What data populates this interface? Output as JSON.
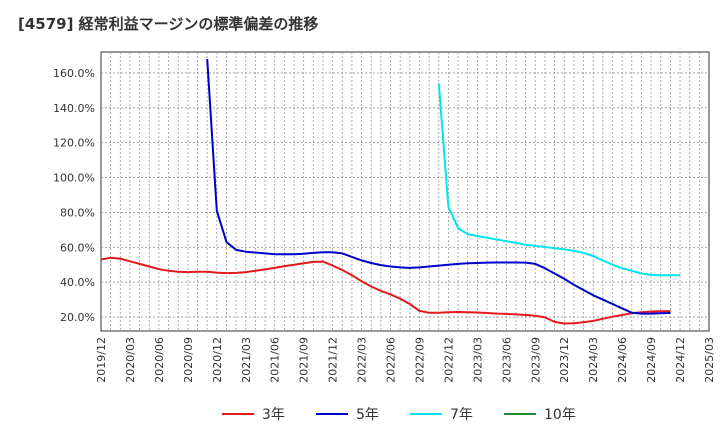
{
  "chart_data": {
    "type": "line",
    "title": "[4579]  経常利益マージンの標準偏差の推移",
    "xlabel": "",
    "ylabel": "",
    "ylim": [
      12,
      172
    ],
    "y_ticks": [
      20,
      40,
      60,
      80,
      100,
      120,
      140,
      160
    ],
    "y_tick_labels": [
      "20.0%",
      "40.0%",
      "60.0%",
      "80.0%",
      "100.0%",
      "120.0%",
      "140.0%",
      "160.0%"
    ],
    "x_range": [
      "2019-12",
      "2025-03"
    ],
    "x_tick_labels": [
      "2019/12",
      "2020/03",
      "2020/06",
      "2020/09",
      "2020/12",
      "2021/03",
      "2021/06",
      "2021/09",
      "2021/12",
      "2022/03",
      "2022/06",
      "2022/09",
      "2022/12",
      "2023/03",
      "2023/06",
      "2023/09",
      "2023/12",
      "2024/03",
      "2024/06",
      "2024/09",
      "2024/12",
      "2025/03"
    ],
    "grid": true,
    "legend_position": "bottom",
    "series": [
      {
        "name": "3年",
        "color": "#e31a1c",
        "points": [
          [
            "2019-12",
            53
          ],
          [
            "2020-01",
            54
          ],
          [
            "2020-02",
            53.5
          ],
          [
            "2020-03",
            52
          ],
          [
            "2020-04",
            50.5
          ],
          [
            "2020-05",
            49
          ],
          [
            "2020-06",
            47.5
          ],
          [
            "2020-07",
            46.5
          ],
          [
            "2020-08",
            46
          ],
          [
            "2020-09",
            45.8
          ],
          [
            "2020-10",
            46
          ],
          [
            "2020-11",
            46
          ],
          [
            "2020-12",
            45.5
          ],
          [
            "2021-01",
            45.2
          ],
          [
            "2021-02",
            45.3
          ],
          [
            "2021-03",
            45.8
          ],
          [
            "2021-04",
            46.5
          ],
          [
            "2021-05",
            47.3
          ],
          [
            "2021-06",
            48.2
          ],
          [
            "2021-07",
            49.2
          ],
          [
            "2021-08",
            50
          ],
          [
            "2021-09",
            50.8
          ],
          [
            "2021-10",
            51.6
          ],
          [
            "2021-11",
            51.8
          ],
          [
            "2021-12",
            49.5
          ],
          [
            "2022-01",
            47
          ],
          [
            "2022-02",
            44
          ],
          [
            "2022-03",
            40.5
          ],
          [
            "2022-04",
            37.5
          ],
          [
            "2022-05",
            35
          ],
          [
            "2022-06",
            33
          ],
          [
            "2022-07",
            30.5
          ],
          [
            "2022-08",
            27.5
          ],
          [
            "2022-09",
            23.5
          ],
          [
            "2022-10",
            22.5
          ],
          [
            "2022-11",
            22.5
          ],
          [
            "2022-12",
            22.8
          ],
          [
            "2023-01",
            22.9
          ],
          [
            "2023-02",
            22.8
          ],
          [
            "2023-03",
            22.6
          ],
          [
            "2023-04",
            22.3
          ],
          [
            "2023-05",
            22
          ],
          [
            "2023-06",
            21.8
          ],
          [
            "2023-07",
            21.5
          ],
          [
            "2023-08",
            21.2
          ],
          [
            "2023-09",
            20.8
          ],
          [
            "2023-10",
            19.8
          ],
          [
            "2023-11",
            17.2
          ],
          [
            "2023-12",
            16.3
          ],
          [
            "2024-01",
            16.5
          ],
          [
            "2024-02",
            17
          ],
          [
            "2024-03",
            17.8
          ],
          [
            "2024-04",
            19
          ],
          [
            "2024-05",
            20.2
          ],
          [
            "2024-06",
            21.2
          ],
          [
            "2024-07",
            22.2
          ],
          [
            "2024-08",
            22.8
          ],
          [
            "2024-09",
            23.2
          ],
          [
            "2024-10",
            23.3
          ],
          [
            "2024-11",
            23.4
          ]
        ]
      },
      {
        "name": "5年",
        "color": "#0000cc",
        "points": [
          [
            "2020-11",
            168
          ],
          [
            "2020-12",
            81
          ],
          [
            "2021-01",
            63
          ],
          [
            "2021-02",
            58.5
          ],
          [
            "2021-03",
            57.5
          ],
          [
            "2021-04",
            57
          ],
          [
            "2021-05",
            56.5
          ],
          [
            "2021-06",
            56
          ],
          [
            "2021-07",
            56
          ],
          [
            "2021-08",
            56
          ],
          [
            "2021-09",
            56.3
          ],
          [
            "2021-10",
            56.8
          ],
          [
            "2021-11",
            57.2
          ],
          [
            "2021-12",
            57.2
          ],
          [
            "2022-01",
            56.5
          ],
          [
            "2022-02",
            54.5
          ],
          [
            "2022-03",
            52.5
          ],
          [
            "2022-04",
            51
          ],
          [
            "2022-05",
            49.8
          ],
          [
            "2022-06",
            49
          ],
          [
            "2022-07",
            48.5
          ],
          [
            "2022-08",
            48.2
          ],
          [
            "2022-09",
            48.5
          ],
          [
            "2022-10",
            49
          ],
          [
            "2022-11",
            49.5
          ],
          [
            "2022-12",
            50
          ],
          [
            "2023-01",
            50.5
          ],
          [
            "2023-02",
            50.8
          ],
          [
            "2023-03",
            51
          ],
          [
            "2023-04",
            51.2
          ],
          [
            "2023-05",
            51.3
          ],
          [
            "2023-06",
            51.3
          ],
          [
            "2023-07",
            51.3
          ],
          [
            "2023-08",
            51.2
          ],
          [
            "2023-09",
            50.5
          ],
          [
            "2023-10",
            48
          ],
          [
            "2023-11",
            45
          ],
          [
            "2023-12",
            42
          ],
          [
            "2024-01",
            38.5
          ],
          [
            "2024-02",
            35.5
          ],
          [
            "2024-03",
            32.5
          ],
          [
            "2024-04",
            30
          ],
          [
            "2024-05",
            27.5
          ],
          [
            "2024-06",
            25
          ],
          [
            "2024-07",
            22.5
          ],
          [
            "2024-08",
            22
          ],
          [
            "2024-09",
            22
          ],
          [
            "2024-10",
            22.2
          ],
          [
            "2024-11",
            22.3
          ]
        ]
      },
      {
        "name": "7年",
        "color": "#00e5ee",
        "points": [
          [
            "2022-11",
            154
          ],
          [
            "2022-12",
            83
          ],
          [
            "2023-01",
            71
          ],
          [
            "2023-02",
            67.5
          ],
          [
            "2023-03",
            66.5
          ],
          [
            "2023-04",
            65.5
          ],
          [
            "2023-05",
            64.5
          ],
          [
            "2023-06",
            63.5
          ],
          [
            "2023-07",
            62.5
          ],
          [
            "2023-08",
            61.5
          ],
          [
            "2023-09",
            60.8
          ],
          [
            "2023-10",
            60.2
          ],
          [
            "2023-11",
            59.5
          ],
          [
            "2023-12",
            58.8
          ],
          [
            "2024-01",
            58
          ],
          [
            "2024-02",
            56.8
          ],
          [
            "2024-03",
            55
          ],
          [
            "2024-04",
            52.5
          ],
          [
            "2024-05",
            50
          ],
          [
            "2024-06",
            48
          ],
          [
            "2024-07",
            46.5
          ],
          [
            "2024-08",
            45
          ],
          [
            "2024-09",
            44.2
          ],
          [
            "2024-10",
            44
          ],
          [
            "2024-11",
            44
          ],
          [
            "2024-12",
            44
          ]
        ]
      },
      {
        "name": "10年",
        "color": "#228b22",
        "points": []
      }
    ]
  }
}
